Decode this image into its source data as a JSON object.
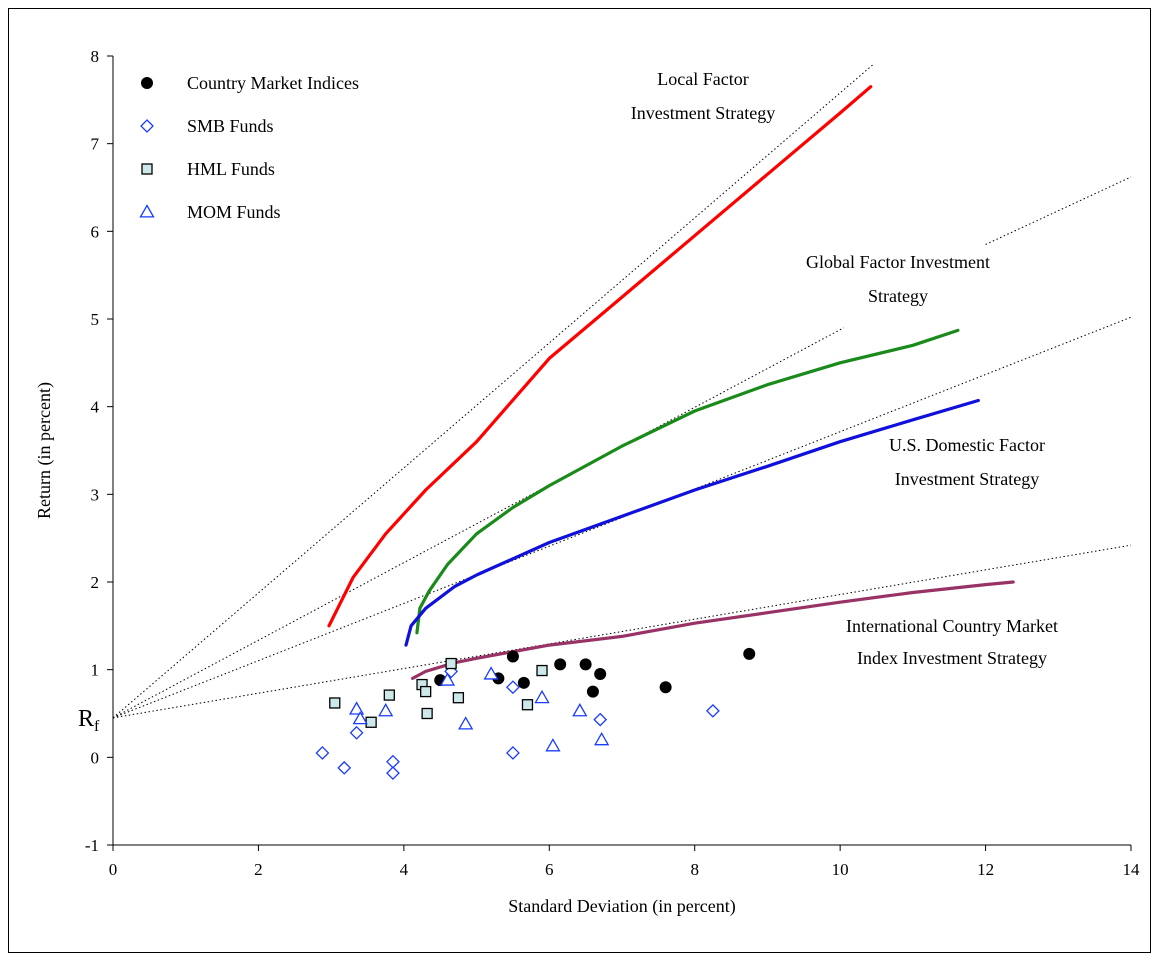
{
  "chart_data": {
    "type": "scatter",
    "xlabel": "Standard Deviation (in percent)",
    "ylabel": "Return (in percent)",
    "xlim": [
      0,
      14
    ],
    "ylim": [
      -1,
      8
    ],
    "x_ticks": [
      "0",
      "2",
      "4",
      "6",
      "8",
      "10",
      "12",
      "14"
    ],
    "y_ticks": [
      "-1",
      "0",
      "1",
      "2",
      "3",
      "4",
      "5",
      "6",
      "7",
      "8"
    ],
    "rf_label": "R",
    "rf_subscript": "f",
    "rf_value": 0.45,
    "grid": false,
    "legend": {
      "placement": "top-left",
      "entries": [
        "Country Market Indices",
        "SMB Funds",
        "HML Funds",
        "MOM Funds"
      ]
    },
    "colors": {
      "local": "#ff0000",
      "global": "#1a8a1a",
      "domestic": "#1010dd",
      "international": "#993366",
      "fund_markers": "#1a3cff",
      "hml_fill": "#cce8e8",
      "country_markers": "#000000"
    },
    "curves": [
      {
        "name": "Local Factor Investment Strategy",
        "key": "local",
        "points": [
          [
            2.97,
            1.5
          ],
          [
            3.3,
            2.05
          ],
          [
            3.75,
            2.55
          ],
          [
            4.3,
            3.05
          ],
          [
            5.0,
            3.6
          ],
          [
            6.0,
            4.55
          ],
          [
            7.0,
            5.25
          ],
          [
            8.0,
            5.95
          ],
          [
            9.0,
            6.65
          ],
          [
            10.0,
            7.35
          ],
          [
            10.42,
            7.65
          ]
        ]
      },
      {
        "name": "Global Factor Investment Strategy",
        "key": "global",
        "points": [
          [
            4.18,
            1.42
          ],
          [
            4.22,
            1.7
          ],
          [
            4.35,
            1.9
          ],
          [
            4.6,
            2.2
          ],
          [
            5.0,
            2.55
          ],
          [
            5.5,
            2.85
          ],
          [
            6.0,
            3.1
          ],
          [
            7.0,
            3.55
          ],
          [
            8.0,
            3.95
          ],
          [
            9.0,
            4.25
          ],
          [
            10.0,
            4.5
          ],
          [
            11.0,
            4.7
          ],
          [
            11.62,
            4.87
          ]
        ]
      },
      {
        "name": "U.S. Domestic Factor Investment Strategy",
        "key": "domestic",
        "points": [
          [
            4.03,
            1.28
          ],
          [
            4.1,
            1.5
          ],
          [
            4.3,
            1.7
          ],
          [
            4.7,
            1.95
          ],
          [
            5.0,
            2.08
          ],
          [
            6.0,
            2.45
          ],
          [
            7.0,
            2.75
          ],
          [
            8.0,
            3.05
          ],
          [
            9.0,
            3.32
          ],
          [
            10.0,
            3.6
          ],
          [
            11.0,
            3.85
          ],
          [
            11.9,
            4.07
          ]
        ]
      },
      {
        "name": "International Country Market Index Investment Strategy",
        "key": "international",
        "points": [
          [
            4.12,
            0.9
          ],
          [
            4.3,
            0.98
          ],
          [
            4.7,
            1.08
          ],
          [
            5.0,
            1.13
          ],
          [
            6.0,
            1.28
          ],
          [
            7.0,
            1.38
          ],
          [
            8.0,
            1.53
          ],
          [
            9.0,
            1.65
          ],
          [
            10.0,
            1.77
          ],
          [
            11.0,
            1.88
          ],
          [
            12.0,
            1.97
          ],
          [
            12.38,
            2.0
          ]
        ]
      }
    ],
    "tangent_lines": [
      {
        "key": "local",
        "to": [
          10.45,
          7.9
        ]
      },
      {
        "key": "global",
        "from": [
          0,
          0.45
        ],
        "to": [
          10.05,
          4.9
        ]
      },
      {
        "key": "global",
        "from": [
          12.0,
          5.85
        ],
        "to": [
          14.0,
          6.62
        ]
      },
      {
        "key": "domestic",
        "to": [
          14.0,
          5.02
        ]
      },
      {
        "key": "international",
        "to": [
          14.0,
          2.42
        ]
      }
    ],
    "series": [
      {
        "name": "Country Market Indices",
        "marker": "circle",
        "points": [
          [
            4.5,
            0.88
          ],
          [
            5.3,
            0.9
          ],
          [
            5.5,
            1.15
          ],
          [
            5.65,
            0.85
          ],
          [
            6.15,
            1.06
          ],
          [
            6.5,
            1.06
          ],
          [
            6.6,
            0.75
          ],
          [
            6.7,
            0.95
          ],
          [
            7.6,
            0.8
          ],
          [
            8.75,
            1.18
          ]
        ]
      },
      {
        "name": "SMB Funds",
        "marker": "diamond",
        "points": [
          [
            2.88,
            0.05
          ],
          [
            3.18,
            -0.12
          ],
          [
            3.35,
            0.28
          ],
          [
            3.85,
            -0.05
          ],
          [
            3.85,
            -0.18
          ],
          [
            4.65,
            0.98
          ],
          [
            5.5,
            0.8
          ],
          [
            5.5,
            0.05
          ],
          [
            6.7,
            0.43
          ],
          [
            8.25,
            0.53
          ]
        ]
      },
      {
        "name": "HML Funds",
        "marker": "square",
        "points": [
          [
            3.05,
            0.62
          ],
          [
            3.55,
            0.4
          ],
          [
            3.8,
            0.71
          ],
          [
            4.25,
            0.83
          ],
          [
            4.3,
            0.75
          ],
          [
            4.32,
            0.5
          ],
          [
            4.65,
            1.07
          ],
          [
            4.75,
            0.68
          ],
          [
            5.7,
            0.6
          ],
          [
            5.9,
            0.99
          ]
        ]
      },
      {
        "name": "MOM Funds",
        "marker": "triangle",
        "points": [
          [
            3.35,
            0.55
          ],
          [
            3.4,
            0.44
          ],
          [
            3.75,
            0.53
          ],
          [
            4.6,
            0.88
          ],
          [
            4.85,
            0.38
          ],
          [
            5.2,
            0.95
          ],
          [
            5.9,
            0.68
          ],
          [
            6.05,
            0.13
          ],
          [
            6.42,
            0.53
          ],
          [
            6.72,
            0.2
          ]
        ]
      }
    ],
    "annotations": [
      {
        "key": "local",
        "lines": [
          "Local Factor",
          "Investment Strategy"
        ]
      },
      {
        "key": "global",
        "lines": [
          "Global Factor Investment",
          "Strategy"
        ]
      },
      {
        "key": "domestic",
        "lines": [
          "U.S. Domestic Factor",
          "Investment Strategy"
        ]
      },
      {
        "key": "international",
        "lines": [
          "International Country Market",
          "Index Investment Strategy"
        ]
      }
    ]
  }
}
